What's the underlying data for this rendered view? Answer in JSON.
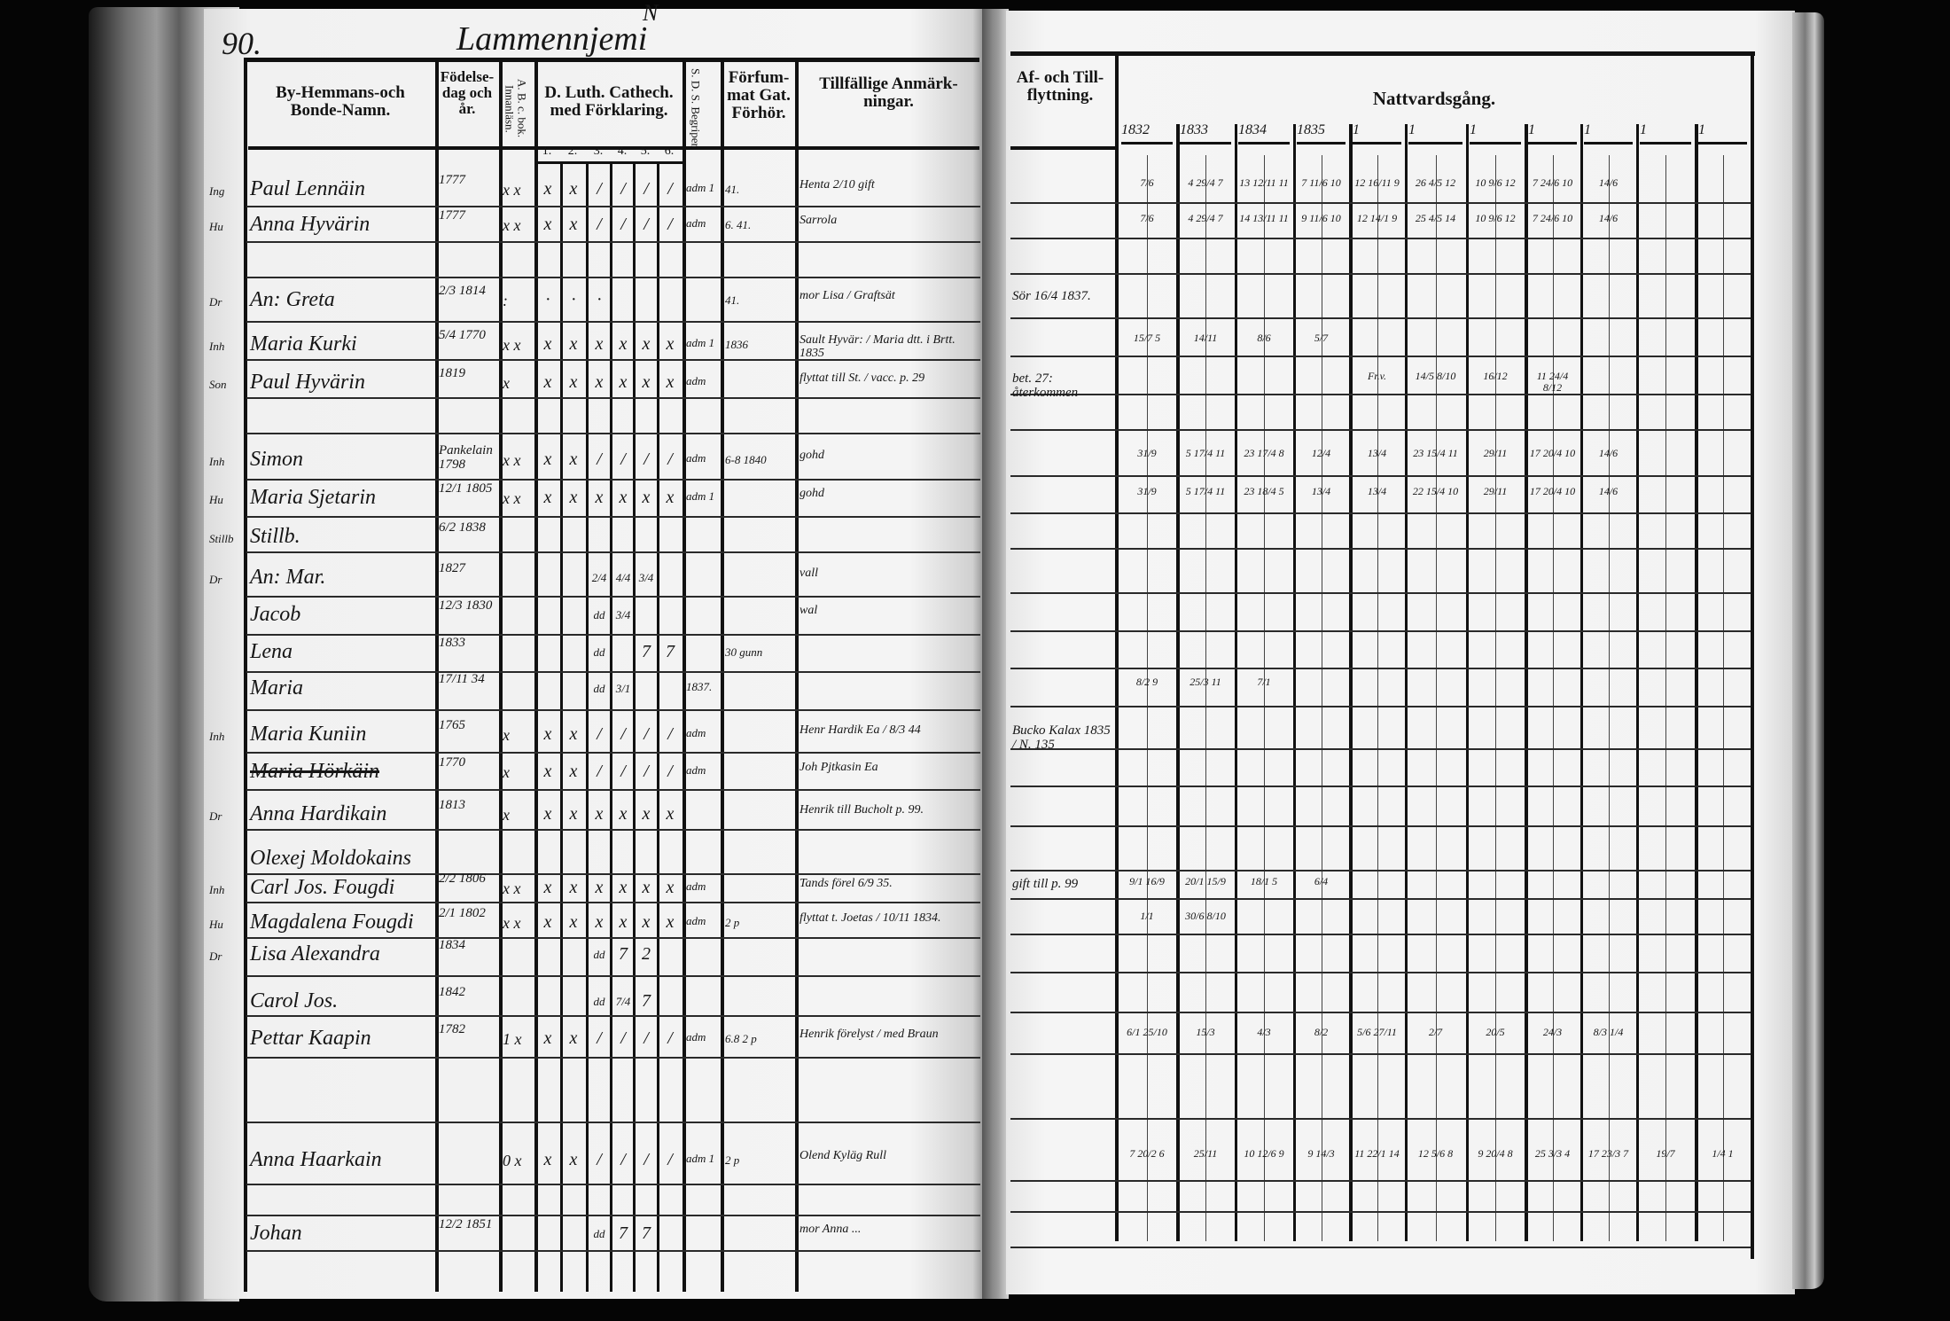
{
  "page_number": "90.",
  "village": "Lammennjemi",
  "village_mark": "N",
  "left_headers": {
    "name": "By-Hemmans-och Bonde-Namn.",
    "birth": "Födelse-dag och år.",
    "abc": "A. B. c. bok. Innanläsn.",
    "catechism": "D. Luth. Cathech. med Förklaring.",
    "catechism_parts": [
      "1.",
      "2.",
      "3.",
      "4.",
      "5.",
      "6."
    ],
    "sds": "S. D. S. Begriper.",
    "forfum": "Förfum-mat Gat. Förhör.",
    "notes": "Tillfällige Anmärk-ningar."
  },
  "right_headers": {
    "moves": "Af- och Till-flyttning.",
    "communion": "Nattvardsgång.",
    "years": [
      "1832",
      "1833",
      "1834",
      "1835",
      "1",
      "1",
      "1",
      "1",
      "1",
      "1",
      "1"
    ]
  },
  "rows": [
    {
      "prefix": "Ing",
      "name": "Paul Lennäin",
      "birth": "1777",
      "abc": "x x",
      "cat": [
        "x",
        "x",
        "/",
        "/",
        "/",
        "/"
      ],
      "sds": "adm 1",
      "forf": "41.",
      "note": "Henta 2/10 gift",
      "af": "",
      "natt": [
        "7/6",
        "4 29/4 7",
        "13 12/11 11",
        "7 11/6 10",
        "12 16/11 9",
        "26 4/5 12",
        "10 9/6 12",
        "7 24/6 10",
        "14/6",
        "",
        ""
      ]
    },
    {
      "prefix": "Hu",
      "name": "Anna Hyvärin",
      "birth": "1777",
      "abc": "x x",
      "cat": [
        "x",
        "x",
        "/",
        "/",
        "/",
        "/"
      ],
      "sds": "adm",
      "forf": "6. 41.",
      "note": "Sarrola",
      "af": "",
      "natt": [
        "7/6",
        "4 29/4 7",
        "14 13/11 11",
        "9 11/6 10",
        "12 14/1 9",
        "25 4/5 14",
        "10 9/6 12",
        "7 24/6 10",
        "14/6",
        "",
        ""
      ]
    },
    {
      "prefix": "Dr",
      "name": "An: Greta",
      "birth": "2/3 1814",
      "abc": ":",
      "cat": [
        "·",
        "·",
        "·",
        "",
        "",
        ""
      ],
      "sds": "",
      "forf": "41.",
      "note": "mor Lisa / Graftsät",
      "af": "Sör 16/4 1837.",
      "natt": [
        "",
        "",
        "",
        "",
        "",
        "",
        "",
        "",
        "",
        "",
        ""
      ]
    },
    {
      "prefix": "Inh",
      "name": "Maria Kurki",
      "birth": "5/4 1770",
      "abc": "x x",
      "cat": [
        "x",
        "x",
        "x",
        "x",
        "x",
        "x"
      ],
      "sds": "adm 1",
      "forf": "1836",
      "note": "Sault Hyvär: / Maria dtt. i Brtt. 1835",
      "af": "",
      "natt": [
        "15/7 5",
        "14/11",
        "8/6",
        "5/7",
        "",
        "",
        "",
        "",
        "",
        "",
        ""
      ]
    },
    {
      "prefix": "Son",
      "name": "Paul Hyvärin",
      "birth": "1819",
      "abc": "x",
      "cat": [
        "x",
        "x",
        "x",
        "x",
        "x",
        "x"
      ],
      "sds": "adm",
      "forf": "",
      "note": "flyttat till St. / vacc. p. 29",
      "af": "bet. 27: återkommen",
      "natt": [
        "",
        "",
        "",
        "",
        "Fr.v.",
        "14/5 8/10",
        "16/12",
        "11 24/4 8/12",
        "",
        "",
        ""
      ]
    },
    {
      "prefix": "Inh",
      "name": "Simon",
      "birth": "Pankelain 1798",
      "abc": "x x",
      "cat": [
        "x",
        "x",
        "/",
        "/",
        "/",
        "/"
      ],
      "sds": "adm",
      "forf": "6-8 1840",
      "note": "gohd",
      "af": "",
      "natt": [
        "31/9",
        "5 17/4 11",
        "23 17/4 8",
        "12/4",
        "13/4",
        "23 15/4 11",
        "29/11",
        "17 20/4 10",
        "14/6",
        "",
        ""
      ]
    },
    {
      "prefix": "Hu",
      "name": "Maria Sjetarin",
      "birth": "12/1 1805",
      "abc": "x x",
      "cat": [
        "x",
        "x",
        "x",
        "x",
        "x",
        "x"
      ],
      "sds": "adm 1",
      "forf": "",
      "note": "gohd",
      "af": "",
      "natt": [
        "31/9",
        "5 17/4 11",
        "23 18/4 5",
        "13/4",
        "13/4",
        "22 15/4 10",
        "29/11",
        "17 20/4 10",
        "14/6",
        "",
        ""
      ]
    },
    {
      "prefix": "Stillb",
      "name": "Stillb.",
      "birth": "6/2 1838",
      "abc": "",
      "cat": [
        "",
        "",
        "",
        "",
        "",
        ""
      ],
      "sds": "",
      "forf": "",
      "note": "",
      "af": "",
      "natt": [
        "",
        "",
        "",
        "",
        "",
        "",
        "",
        "",
        "",
        "",
        ""
      ]
    },
    {
      "prefix": "Dr",
      "name": "An: Mar.",
      "birth": "1827",
      "abc": "",
      "cat": [
        "",
        "",
        "2/4",
        "4/4",
        "3/4",
        ""
      ],
      "sds": "",
      "forf": "",
      "note": "vall",
      "af": "",
      "natt": [
        "",
        "",
        "",
        "",
        "",
        "",
        "",
        "",
        "",
        "",
        ""
      ]
    },
    {
      "prefix": "",
      "name": "Jacob",
      "birth": "12/3 1830",
      "abc": "",
      "cat": [
        "",
        "",
        "dd",
        "3/4",
        "",
        ""
      ],
      "sds": "",
      "forf": "",
      "note": "wal",
      "af": "",
      "natt": [
        "",
        "",
        "",
        "",
        "",
        "",
        "",
        "",
        "",
        "",
        ""
      ]
    },
    {
      "prefix": "",
      "name": "Lena",
      "birth": "1833",
      "abc": "",
      "cat": [
        "",
        "",
        "dd",
        "",
        "7",
        "7"
      ],
      "sds": "",
      "forf": "30 gunn",
      "note": "",
      "af": "",
      "natt": [
        "",
        "",
        "",
        "",
        "",
        "",
        "",
        "",
        "",
        "",
        ""
      ]
    },
    {
      "prefix": "",
      "name": "Maria",
      "birth": "17/11 34",
      "abc": "",
      "cat": [
        "",
        "",
        "dd",
        "3/1",
        "",
        ""
      ],
      "sds": "1837.",
      "forf": "",
      "note": "",
      "af": "",
      "natt": [
        "8/2 9",
        "25/3 11",
        "7/1",
        "",
        "",
        "",
        "",
        "",
        "",
        "",
        ""
      ]
    },
    {
      "prefix": "Inh",
      "name": "Maria Kuniin",
      "birth": "1765",
      "abc": "x",
      "cat": [
        "x",
        "x",
        "/",
        "/",
        "/",
        "/"
      ],
      "sds": "adm",
      "forf": "",
      "note": "Henr Hardik Ea / 8/3 44",
      "af": "Bucko Kalax 1835 / N. 135",
      "natt": [
        "",
        "",
        "",
        "",
        "",
        "",
        "",
        "",
        "",
        "",
        ""
      ]
    },
    {
      "prefix": "",
      "name": "Maria Hörkäin",
      "birth": "1770",
      "abc": "x",
      "cat": [
        "x",
        "x",
        "/",
        "/",
        "/",
        "/"
      ],
      "sds": "adm",
      "forf": "",
      "note": "Joh Pjtkasin Ea",
      "af": "",
      "natt": [
        "",
        "",
        "",
        "",
        "",
        "",
        "",
        "",
        "",
        "",
        ""
      ],
      "struck": true
    },
    {
      "prefix": "Dr",
      "name": "Anna Hardikain",
      "birth": "1813",
      "abc": "x",
      "cat": [
        "x",
        "x",
        "x",
        "x",
        "x",
        "x"
      ],
      "sds": "",
      "forf": "",
      "note": "Henrik till Bucholt p. 99.",
      "af": "",
      "natt": [
        "",
        "",
        "",
        "",
        "",
        "",
        "",
        "",
        "",
        "",
        ""
      ]
    },
    {
      "prefix": "",
      "name": "Olexej Moldokains",
      "birth": "",
      "abc": "",
      "cat": [
        "",
        "",
        "",
        "",
        "",
        ""
      ],
      "sds": "",
      "forf": "",
      "note": "",
      "af": "",
      "natt": [
        "",
        "",
        "",
        "",
        "",
        "",
        "",
        "",
        "",
        "",
        ""
      ]
    },
    {
      "prefix": "Inh",
      "name": "Carl Jos. Fougdi",
      "birth": "2/2 1806",
      "abc": "x x",
      "cat": [
        "x",
        "x",
        "x",
        "x",
        "x",
        "x"
      ],
      "sds": "adm",
      "forf": "",
      "note": "Tands förel 6/9 35.",
      "af": "gift till p. 99",
      "natt": [
        "9/1 16/9",
        "20/1 15/9",
        "18/1 5",
        "6/4",
        "",
        "",
        "",
        "",
        "",
        "",
        ""
      ]
    },
    {
      "prefix": "Hu",
      "name": "Magdalena Fougdi",
      "birth": "2/1 1802",
      "abc": "x x",
      "cat": [
        "x",
        "x",
        "x",
        "x",
        "x",
        "x"
      ],
      "sds": "adm",
      "forf": "2 p",
      "note": "flyttat t. Joetas / 10/11 1834.",
      "af": "",
      "natt": [
        "1/1",
        "30/6 8/10",
        "",
        "",
        "",
        "",
        "",
        "",
        "",
        "",
        ""
      ]
    },
    {
      "prefix": "Dr",
      "name": "Lisa Alexandra",
      "birth": "1834",
      "abc": "",
      "cat": [
        "",
        "",
        "dd",
        "7",
        "2",
        ""
      ],
      "sds": "",
      "forf": "",
      "note": "",
      "af": "",
      "natt": [
        "",
        "",
        "",
        "",
        "",
        "",
        "",
        "",
        "",
        "",
        ""
      ]
    },
    {
      "prefix": "",
      "name": "Carol Jos.",
      "birth": "1842",
      "abc": "",
      "cat": [
        "",
        "",
        "dd",
        "7/4",
        "7",
        ""
      ],
      "sds": "",
      "forf": "",
      "note": "",
      "af": "",
      "natt": [
        "",
        "",
        "",
        "",
        "",
        "",
        "",
        "",
        "",
        "",
        ""
      ]
    },
    {
      "prefix": "",
      "name": "Pettar Kaapin",
      "birth": "1782",
      "abc": "1 x",
      "cat": [
        "x",
        "x",
        "/",
        "/",
        "/",
        "/"
      ],
      "sds": "adm",
      "forf": "6.8 2 p",
      "note": "Henrik förelyst / med Braun",
      "af": "",
      "natt": [
        "6/1 25/10",
        "15/3",
        "4/3",
        "8/2",
        "5/6 27/11",
        "2/7",
        "20/5",
        "24/3",
        "8/3 1/4",
        "",
        ""
      ]
    },
    {
      "prefix": "",
      "name": "Anna Haarkain",
      "birth": "",
      "abc": "0 x",
      "cat": [
        "x",
        "x",
        "/",
        "/",
        "/",
        "/"
      ],
      "sds": "adm 1",
      "forf": "2 p",
      "note": "Olend Kyläg Rull",
      "af": "",
      "natt": [
        "7 20/2 6",
        "25/11",
        "10 12/6 9",
        "9 14/3",
        "11 22/1 14",
        "12 5/6 8",
        "9 20/4 8",
        "25 3/3 4",
        "17 23/3 7",
        "19/7",
        "1/4 1"
      ]
    },
    {
      "prefix": "",
      "name": "Johan",
      "birth": "12/2 1851",
      "abc": "",
      "cat": [
        "",
        "",
        "dd",
        "7",
        "7",
        ""
      ],
      "sds": "",
      "forf": "",
      "note": "mor Anna ...",
      "af": "",
      "natt": [
        "",
        "",
        "",
        "",
        "",
        "",
        "",
        "",
        "",
        "",
        ""
      ]
    }
  ]
}
